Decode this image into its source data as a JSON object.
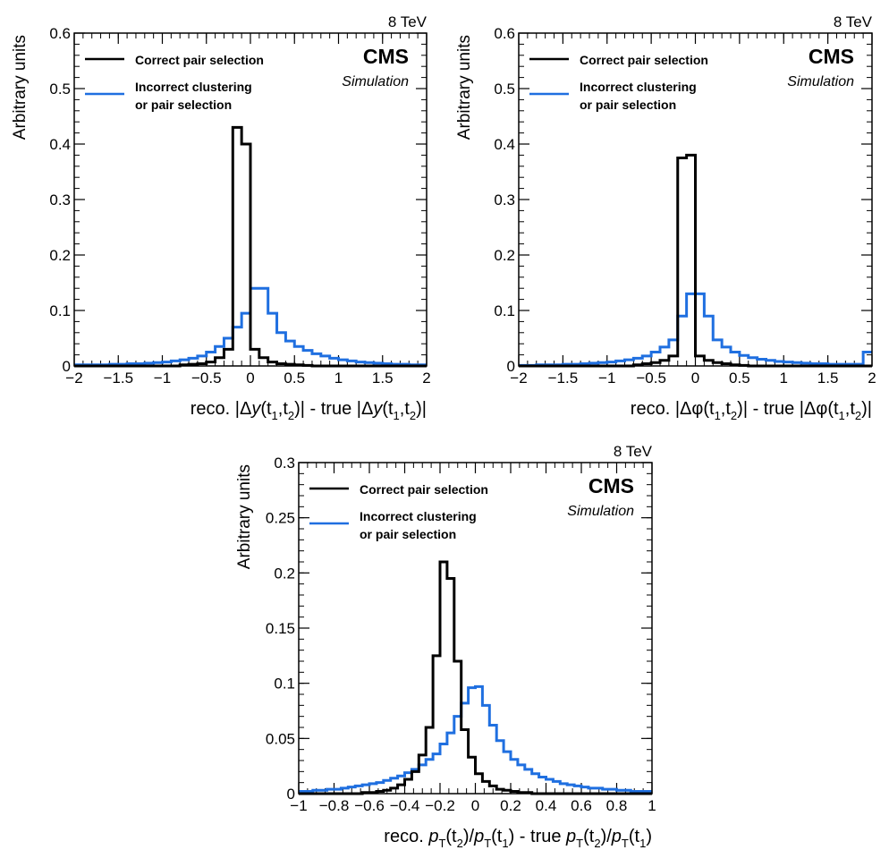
{
  "figure": {
    "energy_label": "8 TeV",
    "experiment": "CMS",
    "subtitle": "Simulation",
    "legend": {
      "correct": "Correct pair selection",
      "incorrect_line1": "Incorrect clustering",
      "incorrect_line2": "or pair selection"
    }
  },
  "colors": {
    "correct": "#000000",
    "incorrect": "#1f6fe0"
  },
  "chart_data": [
    {
      "type": "histogram",
      "ylabel": "Arbitrary units",
      "xlabel_parts": [
        "reco. |Δ",
        "y",
        "(t",
        "1",
        ",t",
        "2",
        ")| - true |Δ",
        "y",
        "(t",
        "1",
        ",t",
        "2",
        ")|"
      ],
      "xlim": [
        -2,
        2
      ],
      "ylim": [
        0,
        0.6
      ],
      "xticks": [
        -2,
        -1.5,
        -1,
        -0.5,
        0,
        0.5,
        1,
        1.5,
        2
      ],
      "xtick_labels": [
        "−2",
        "−1.5",
        "−1",
        "−0.5",
        "0",
        "0.5",
        "1",
        "1.5",
        "2"
      ],
      "yticks": [
        0,
        0.1,
        0.2,
        0.3,
        0.4,
        0.5,
        0.6
      ],
      "ytick_labels": [
        "0",
        "0.1",
        "0.2",
        "0.3",
        "0.4",
        "0.5",
        "0.6"
      ],
      "bin_edges_range": [
        -2,
        2
      ],
      "bin_width": 0.1,
      "series": [
        {
          "name": "Correct pair selection",
          "color_key": "correct",
          "values": [
            0,
            0,
            0,
            0,
            0,
            0,
            0,
            0,
            0,
            0,
            0,
            0,
            0.002,
            0.003,
            0.004,
            0.007,
            0.015,
            0.03,
            0.43,
            0.4,
            0.03,
            0.015,
            0.007,
            0.004,
            0.003,
            0.002,
            0.001,
            0,
            0,
            0,
            0,
            0,
            0,
            0,
            0,
            0,
            0,
            0,
            0,
            0
          ]
        },
        {
          "name": "Incorrect clustering or pair selection",
          "color_key": "incorrect",
          "values": [
            0.002,
            0.002,
            0.002,
            0.002,
            0.003,
            0.003,
            0.004,
            0.004,
            0.005,
            0.006,
            0.007,
            0.009,
            0.011,
            0.014,
            0.018,
            0.025,
            0.035,
            0.05,
            0.07,
            0.095,
            0.14,
            0.14,
            0.095,
            0.06,
            0.045,
            0.035,
            0.028,
            0.022,
            0.018,
            0.014,
            0.011,
            0.009,
            0.007,
            0.006,
            0.005,
            0.004,
            0.003,
            0.003,
            0.002,
            0.002
          ]
        }
      ]
    },
    {
      "type": "histogram",
      "ylabel": "Arbitrary units",
      "xlabel_parts": [
        "reco. |Δφ(t",
        "1",
        ",t",
        "2",
        ")| - true |Δφ(t",
        "1",
        ",t",
        "2",
        ")|"
      ],
      "xlim": [
        -2,
        2
      ],
      "ylim": [
        0,
        0.6
      ],
      "xticks": [
        -2,
        -1.5,
        -1,
        -0.5,
        0,
        0.5,
        1,
        1.5,
        2
      ],
      "xtick_labels": [
        "−2",
        "−1.5",
        "−1",
        "−0.5",
        "0",
        "0.5",
        "1",
        "1.5",
        "2"
      ],
      "yticks": [
        0,
        0.1,
        0.2,
        0.3,
        0.4,
        0.5,
        0.6
      ],
      "ytick_labels": [
        "0",
        "0.1",
        "0.2",
        "0.3",
        "0.4",
        "0.5",
        "0.6"
      ],
      "bin_edges_range": [
        -2,
        2
      ],
      "bin_width": 0.1,
      "series": [
        {
          "name": "Correct pair selection",
          "color_key": "correct",
          "values": [
            0,
            0,
            0,
            0,
            0,
            0,
            0,
            0,
            0,
            0,
            0,
            0,
            0,
            0.002,
            0.004,
            0.006,
            0.01,
            0.018,
            0.375,
            0.38,
            0.018,
            0.01,
            0.006,
            0.004,
            0.002,
            0.001,
            0,
            0,
            0,
            0,
            0,
            0,
            0,
            0,
            0,
            0,
            0,
            0,
            0,
            0
          ]
        },
        {
          "name": "Incorrect clustering or pair selection",
          "color_key": "incorrect",
          "values": [
            0.001,
            0.001,
            0.002,
            0.002,
            0.002,
            0.003,
            0.003,
            0.004,
            0.005,
            0.006,
            0.007,
            0.009,
            0.011,
            0.014,
            0.018,
            0.025,
            0.034,
            0.047,
            0.09,
            0.13,
            0.13,
            0.09,
            0.047,
            0.034,
            0.025,
            0.019,
            0.015,
            0.012,
            0.01,
            0.008,
            0.007,
            0.006,
            0.005,
            0.004,
            0.004,
            0.003,
            0.003,
            0.003,
            0.003,
            0.025
          ]
        }
      ]
    },
    {
      "type": "histogram",
      "ylabel": "Arbitrary units",
      "xlabel_parts": [
        "reco. ",
        "p",
        "T",
        "(t",
        "2",
        ")/",
        "p",
        "T",
        "(t",
        "1",
        ") - true ",
        "p",
        "T",
        "(t",
        "2",
        ")/",
        "p",
        "T",
        "(t",
        "1",
        ")"
      ],
      "xlim": [
        -1,
        1
      ],
      "ylim": [
        0,
        0.3
      ],
      "xticks": [
        -1,
        -0.8,
        -0.6,
        -0.4,
        -0.2,
        0,
        0.2,
        0.4,
        0.6,
        0.8,
        1
      ],
      "xtick_labels": [
        "−1",
        "−0.8",
        "−0.6",
        "−0.4",
        "−0.2",
        "0",
        "0.2",
        "0.4",
        "0.6",
        "0.8",
        "1"
      ],
      "yticks": [
        0,
        0.05,
        0.1,
        0.15,
        0.2,
        0.25,
        0.3
      ],
      "ytick_labels": [
        "0",
        "0.05",
        "0.1",
        "0.15",
        "0.2",
        "0.25",
        "0.3"
      ],
      "bin_edges_range": [
        -1,
        1
      ],
      "bin_width": 0.04,
      "series": [
        {
          "name": "Correct pair selection",
          "color_key": "correct",
          "values": [
            0,
            0,
            0,
            0,
            0,
            0,
            0,
            0,
            0,
            0.001,
            0.001,
            0.002,
            0.003,
            0.005,
            0.008,
            0.013,
            0.02,
            0.035,
            0.06,
            0.125,
            0.21,
            0.195,
            0.12,
            0.058,
            0.033,
            0.018,
            0.011,
            0.007,
            0.004,
            0.003,
            0.002,
            0.001,
            0.001,
            0,
            0,
            0,
            0,
            0,
            0,
            0,
            0,
            0,
            0,
            0,
            0,
            0,
            0,
            0,
            0,
            0
          ]
        },
        {
          "name": "Incorrect clustering or pair selection",
          "color_key": "incorrect",
          "values": [
            0.002,
            0.002,
            0.003,
            0.003,
            0.004,
            0.004,
            0.005,
            0.006,
            0.007,
            0.008,
            0.009,
            0.01,
            0.012,
            0.014,
            0.016,
            0.019,
            0.022,
            0.026,
            0.031,
            0.036,
            0.045,
            0.055,
            0.07,
            0.082,
            0.096,
            0.097,
            0.08,
            0.062,
            0.048,
            0.038,
            0.031,
            0.026,
            0.022,
            0.018,
            0.015,
            0.013,
            0.011,
            0.009,
            0.008,
            0.007,
            0.006,
            0.005,
            0.005,
            0.004,
            0.004,
            0.003,
            0.003,
            0.002,
            0.002,
            0.002
          ]
        }
      ]
    }
  ]
}
